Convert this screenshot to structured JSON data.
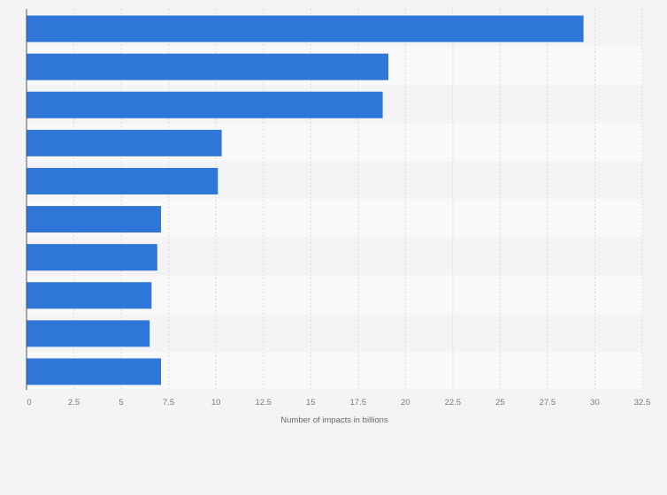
{
  "chart_data": {
    "type": "bar",
    "orientation": "horizontal",
    "categories": [
      "",
      "",
      "",
      "",
      "",
      "",
      "",
      "",
      "",
      ""
    ],
    "values": [
      29.4,
      19.1,
      18.8,
      10.3,
      10.1,
      7.1,
      6.9,
      6.6,
      6.5,
      7.1
    ],
    "xlabel": "Number of impacts in billions",
    "ylabel": "",
    "xlim": [
      0,
      32.5
    ],
    "xticks": [
      0,
      2.5,
      5,
      7.5,
      10,
      12.5,
      15,
      17.5,
      20,
      22.5,
      25,
      27.5,
      30,
      32.5
    ],
    "xtick_labels": [
      "0",
      "2.5",
      "5",
      "7.5",
      "10",
      "12.5",
      "15",
      "17.5",
      "20",
      "22.5",
      "25",
      "27.5",
      "30",
      "32.5"
    ],
    "grid": true,
    "legend": "none",
    "colors": {
      "bar": "#2f76d9",
      "band_even": "#f4f4f6",
      "band_odd": "#f9f9fa",
      "grid": "#dcdcdc",
      "axis": "#555555",
      "background": "#f4f4f6"
    }
  }
}
